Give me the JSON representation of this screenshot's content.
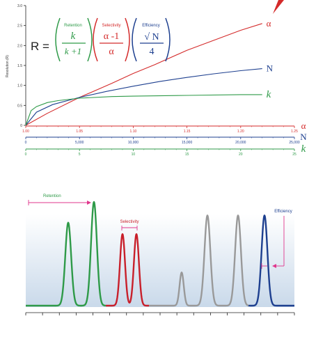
{
  "chart_data": [
    {
      "type": "line",
      "ylabel": "Resolution (R)",
      "ylim": [
        0,
        3.0
      ],
      "yticks": [
        "0",
        "0.5",
        "1.0",
        "1.5",
        "2.0",
        "2.5",
        "3.0"
      ],
      "axes": [
        {
          "name": "α",
          "range": [
            1.0,
            1.25
          ],
          "ticks": [
            "1.00",
            "1.05",
            "1.10",
            "1.15",
            "1.20",
            "1.25"
          ],
          "color": "#d42a2a"
        },
        {
          "name": "N",
          "range": [
            0,
            25000
          ],
          "ticks": [
            "0",
            "5,000",
            "10,000",
            "15,000",
            "20,000",
            "25,000"
          ],
          "color": "#1d3f8f"
        },
        {
          "name": "k",
          "range": [
            0,
            25
          ],
          "ticks": [
            "0",
            "5",
            "10",
            "15",
            "20",
            "25"
          ],
          "color": "#2e9a48"
        }
      ],
      "series": [
        {
          "name": "α",
          "color": "#d42a2a",
          "x": [
            1.0,
            1.02,
            1.05,
            1.08,
            1.1,
            1.12,
            1.15,
            1.18,
            1.2,
            1.22
          ],
          "y": [
            0,
            0.3,
            0.7,
            1.05,
            1.3,
            1.52,
            1.88,
            2.18,
            2.38,
            2.55
          ]
        },
        {
          "name": "N",
          "color": "#1d3f8f",
          "x": [
            0,
            1000,
            2500,
            5000,
            7500,
            10000,
            12500,
            15000,
            17500,
            20000,
            22000
          ],
          "y": [
            0,
            0.33,
            0.52,
            0.7,
            0.85,
            0.98,
            1.1,
            1.2,
            1.29,
            1.37,
            1.42
          ]
        },
        {
          "name": "k",
          "color": "#2e9a48",
          "x": [
            0,
            0.5,
            1,
            2,
            3,
            5,
            8,
            10,
            15,
            20,
            22
          ],
          "y": [
            0,
            0.37,
            0.47,
            0.57,
            0.62,
            0.68,
            0.72,
            0.73,
            0.75,
            0.77,
            0.77
          ]
        }
      ],
      "equation": {
        "lhs": "R =",
        "retention": {
          "label": "Retention",
          "numerator": "k",
          "denominator": "k +1"
        },
        "selectivity": {
          "label": "Selectivity",
          "numerator": "α -1",
          "denominator": "α"
        },
        "efficiency": {
          "label": "Efficiency",
          "numerator": "√ N",
          "denominator": "4"
        }
      }
    },
    {
      "type": "line",
      "title": "",
      "annotations": [
        "Retention",
        "Selectivity",
        "Efficiency"
      ],
      "peaks": [
        {
          "group": "retention",
          "color": "#2e9a48",
          "height": 0.8
        },
        {
          "group": "retention",
          "color": "#2e9a48",
          "height": 1.0
        },
        {
          "group": "selectivity",
          "color": "#c81f2a",
          "height": 0.69
        },
        {
          "group": "selectivity",
          "color": "#c81f2a",
          "height": 0.69
        },
        {
          "group": "other",
          "color": "#999999",
          "height": 0.32
        },
        {
          "group": "other",
          "color": "#999999",
          "height": 0.87
        },
        {
          "group": "other",
          "color": "#999999",
          "height": 0.87
        },
        {
          "group": "efficiency",
          "color": "#1d3f8f",
          "height": 0.87
        }
      ]
    }
  ]
}
